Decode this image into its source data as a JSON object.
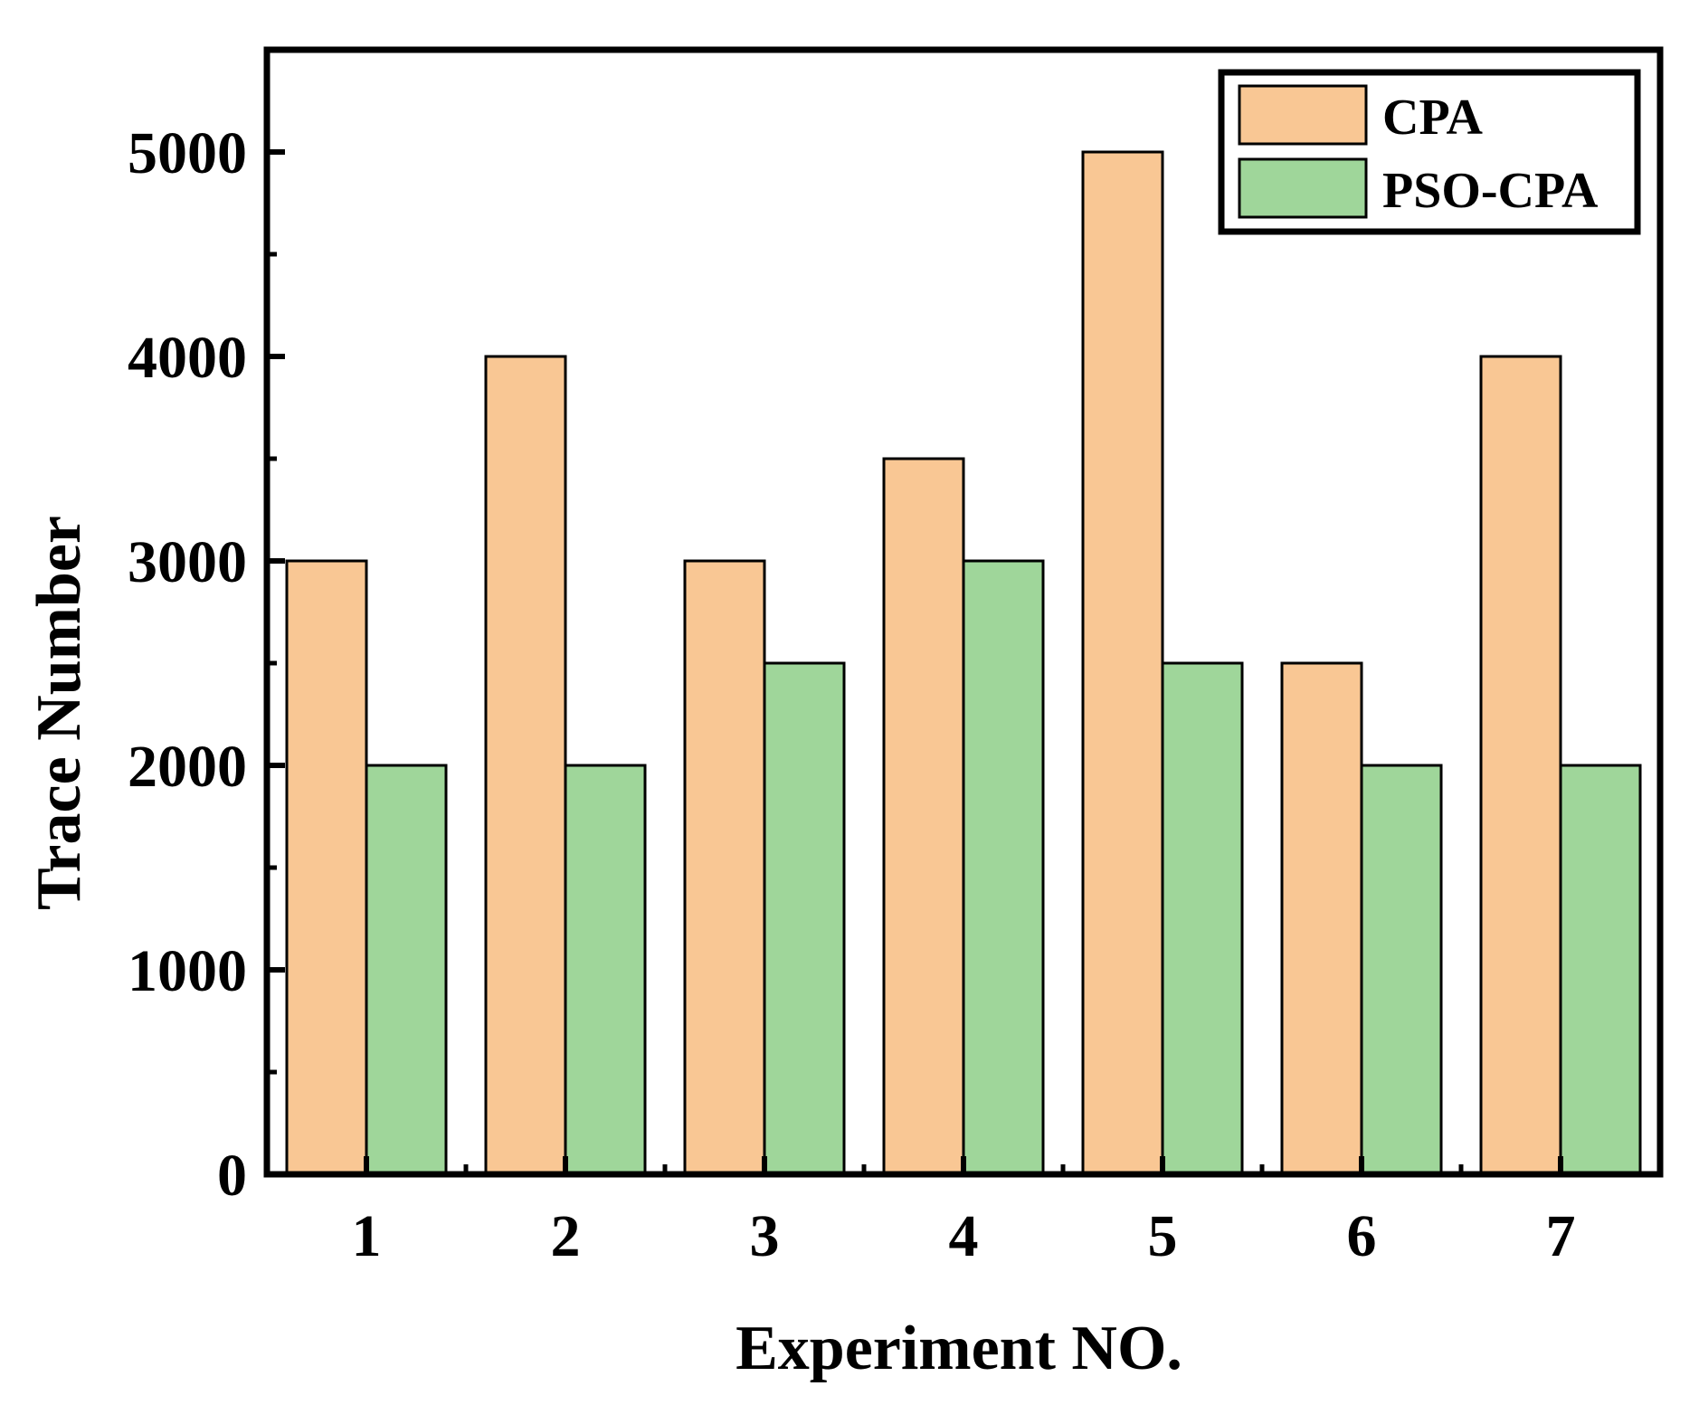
{
  "chart_data": {
    "type": "bar",
    "title": "",
    "xlabel": "Experiment NO.",
    "ylabel": "Trace Number",
    "categories": [
      "1",
      "2",
      "3",
      "4",
      "5",
      "6",
      "7"
    ],
    "series": [
      {
        "name": "CPA",
        "color": "#F9C794",
        "values": [
          3000,
          4000,
          3000,
          3500,
          5000,
          2500,
          4000
        ]
      },
      {
        "name": "PSO-CPA",
        "color": "#9FD69A",
        "values": [
          2000,
          2000,
          2500,
          3000,
          2500,
          2000,
          2000
        ]
      }
    ],
    "ylim": [
      0,
      5500
    ],
    "yticks": [
      "0",
      "1000",
      "2000",
      "3000",
      "4000",
      "5000"
    ],
    "grid": false,
    "legend_position": "top-right"
  }
}
